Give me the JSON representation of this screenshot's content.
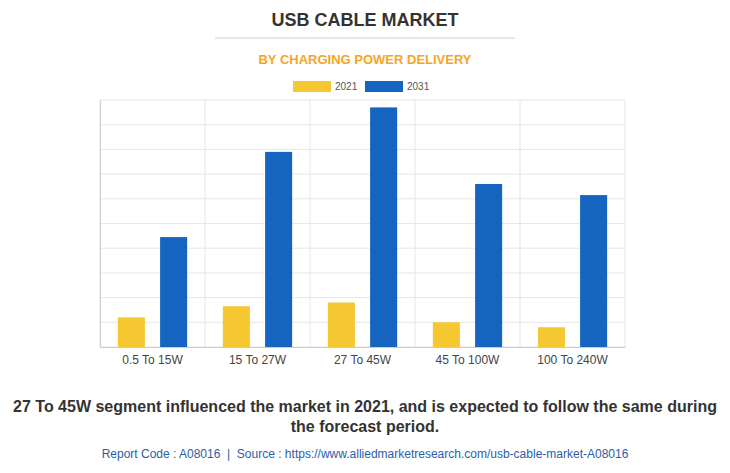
{
  "chart_data": {
    "type": "bar",
    "title": "USB CABLE MARKET",
    "subtitle": "BY CHARGING POWER DELIVERY",
    "categories": [
      "0.5 To 15W",
      "15 To 27W",
      "27 To 45W",
      "45 To 100W",
      "100 To 240W"
    ],
    "series": [
      {
        "name": "2021",
        "color": "#f5c832",
        "values": [
          1.2,
          1.65,
          1.8,
          1.0,
          0.8
        ]
      },
      {
        "name": "2031",
        "color": "#1565c0",
        "values": [
          4.45,
          7.9,
          9.7,
          6.6,
          6.15
        ]
      }
    ],
    "ylim": [
      0,
      10
    ],
    "yticks": [
      0,
      1,
      2,
      3,
      4,
      5,
      6,
      7,
      8,
      9,
      10
    ],
    "grid": true,
    "legend": "top",
    "tick_labels": "x",
    "annotations": [
      "27 To 45W segment influenced the market in 2021, and is expected to follow the same during the forecast period.",
      "Report Code : A08016  |  Source : https://www.alliedmarketresearch.com/usb-cable-market-A08016"
    ]
  }
}
